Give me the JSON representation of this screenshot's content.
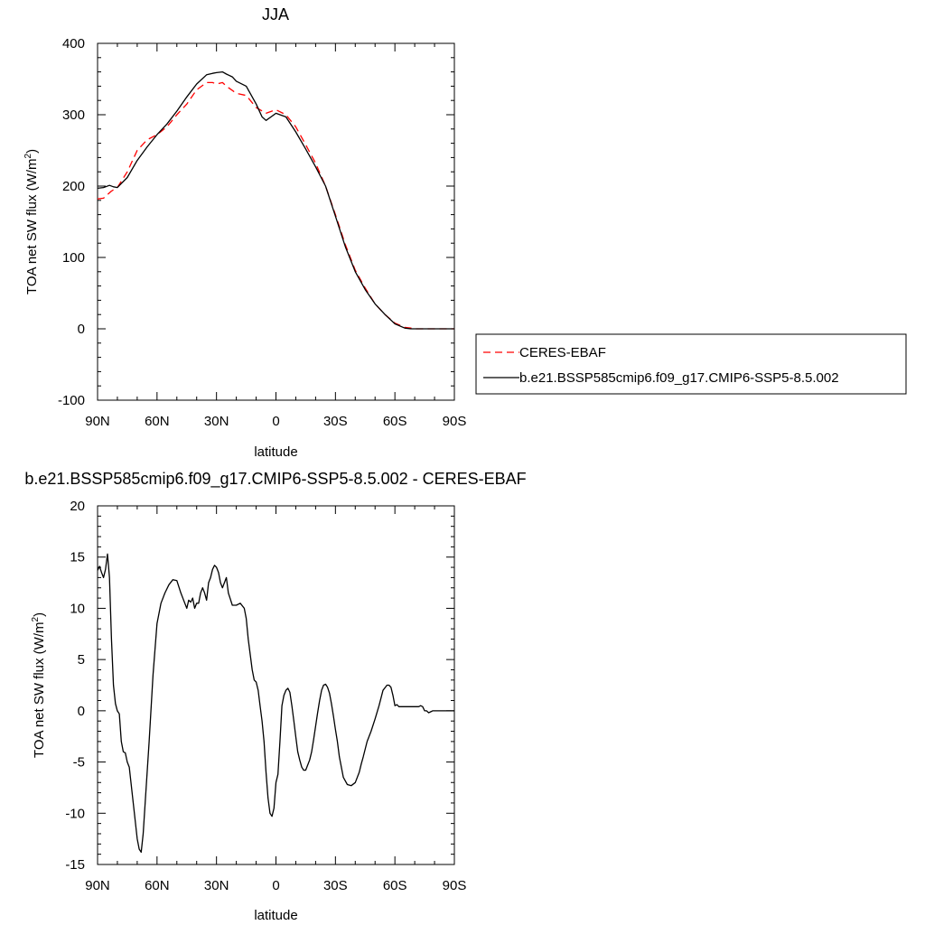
{
  "chart_data": [
    {
      "type": "line",
      "title": "JJA",
      "xlabel": "latitude",
      "ylabel": "TOA net SW flux (W/m",
      "ylabel_sup": "2",
      "ylabel_close": ")",
      "xlim": [
        90,
        -90
      ],
      "ylim": [
        -100,
        400
      ],
      "x_ticks": [
        90,
        60,
        30,
        0,
        -30,
        -60,
        -90
      ],
      "x_tick_labels": [
        "90N",
        "60N",
        "30N",
        "0",
        "30S",
        "60S",
        "90S"
      ],
      "y_ticks": [
        -100,
        0,
        100,
        200,
        300,
        400
      ],
      "y_tick_labels": [
        "-100",
        "0",
        "100",
        "200",
        "300",
        "400"
      ],
      "legend_position": "right",
      "series": [
        {
          "name": "CERES-EBAF",
          "color": "#ff0000",
          "dash": "dashed",
          "x": [
            90,
            87,
            83,
            80,
            75,
            70,
            65,
            60,
            55,
            50,
            45,
            40,
            35,
            32,
            30,
            27,
            25,
            20,
            15,
            10,
            5,
            2,
            0,
            -5,
            -10,
            -15,
            -20,
            -25,
            -30,
            -35,
            -40,
            -45,
            -50,
            -55,
            -60,
            -65,
            -68,
            -70,
            -75,
            -80,
            -85,
            -90
          ],
          "y": [
            182,
            183,
            193,
            198,
            220,
            250,
            265,
            272,
            283,
            300,
            315,
            335,
            345,
            345,
            343,
            345,
            340,
            330,
            327,
            310,
            302,
            305,
            307,
            300,
            283,
            258,
            232,
            200,
            160,
            118,
            82,
            57,
            35,
            20,
            8,
            2,
            1,
            0,
            0,
            0,
            0,
            0
          ]
        },
        {
          "name": "b.e21.BSSP585cmip6.f09_g17.CMIP6-SSP5-8.5.002",
          "color": "#000000",
          "dash": "solid",
          "x": [
            90,
            87,
            84,
            82,
            80,
            75,
            70,
            65,
            60,
            55,
            50,
            45,
            40,
            35,
            32,
            30,
            27,
            25,
            22,
            20,
            15,
            10,
            7,
            5,
            2,
            0,
            -5,
            -10,
            -15,
            -20,
            -25,
            -30,
            -35,
            -40,
            -45,
            -50,
            -55,
            -60,
            -65,
            -68,
            -70,
            -75,
            -80,
            -85,
            -90
          ],
          "y": [
            197,
            198,
            201,
            199,
            198,
            212,
            236,
            255,
            272,
            287,
            305,
            325,
            343,
            356,
            358,
            359,
            360,
            357,
            353,
            347,
            340,
            315,
            297,
            292,
            298,
            302,
            297,
            276,
            252,
            227,
            200,
            158,
            115,
            80,
            55,
            35,
            20,
            7,
            1,
            0,
            0,
            0,
            0,
            0,
            0
          ]
        }
      ]
    },
    {
      "type": "line",
      "title": "b.e21.BSSP585cmip6.f09_g17.CMIP6-SSP5-8.5.002 - CERES-EBAF",
      "xlabel": "latitude",
      "ylabel": "TOA net SW flux (W/m",
      "ylabel_sup": "2",
      "ylabel_close": ")",
      "xlim": [
        90,
        -90
      ],
      "ylim": [
        -15,
        20
      ],
      "x_ticks": [
        90,
        60,
        30,
        0,
        -30,
        -60,
        -90
      ],
      "x_tick_labels": [
        "90N",
        "60N",
        "30N",
        "0",
        "30S",
        "60S",
        "90S"
      ],
      "y_ticks": [
        -15,
        -10,
        -5,
        0,
        5,
        10,
        15,
        20
      ],
      "y_tick_labels": [
        "-15",
        "-10",
        "-5",
        "0",
        "5",
        "10",
        "15",
        "20"
      ],
      "series": [
        {
          "color": "#000000",
          "dash": "solid",
          "x": [
            90,
            89,
            88,
            87,
            86,
            85,
            84,
            83,
            82,
            81,
            80,
            79,
            78,
            77,
            76,
            75,
            74,
            72,
            70,
            69,
            68,
            67,
            66,
            64,
            62,
            60,
            58,
            56,
            54,
            52,
            50,
            48,
            46,
            45,
            44,
            43,
            42,
            41,
            40,
            39,
            38,
            37,
            36,
            35,
            34,
            33,
            32,
            31,
            30,
            29,
            28,
            27,
            26,
            25,
            24,
            22,
            20,
            18,
            16,
            15,
            14,
            13,
            12,
            11,
            10,
            9,
            8,
            7,
            6,
            5,
            4,
            3,
            2,
            1,
            0,
            -1,
            -2,
            -3,
            -4,
            -5,
            -6,
            -7,
            -8,
            -9,
            -10,
            -11,
            -12,
            -13,
            -14,
            -15,
            -16,
            -17,
            -18,
            -19,
            -20,
            -21,
            -22,
            -23,
            -24,
            -25,
            -26,
            -27,
            -28,
            -29,
            -30,
            -31,
            -32,
            -34,
            -36,
            -38,
            -40,
            -42,
            -43,
            -44,
            -46,
            -48,
            -50,
            -52,
            -54,
            -56,
            -57,
            -58,
            -59,
            -60,
            -61,
            -62,
            -63,
            -64,
            -65,
            -66,
            -67,
            -68,
            -69,
            -70,
            -71,
            -72,
            -73,
            -74,
            -75,
            -76,
            -77,
            -78,
            -79,
            -80,
            -82,
            -84,
            -86,
            -88,
            -90
          ],
          "y": [
            13.7,
            14.1,
            13.5,
            13.0,
            13.8,
            15.3,
            13.0,
            7.0,
            2.5,
            0.7,
            0.0,
            -0.3,
            -3.0,
            -4.0,
            -4.1,
            -5.0,
            -5.5,
            -9.0,
            -12.5,
            -13.5,
            -13.8,
            -12.0,
            -9.0,
            -3.0,
            3.5,
            8.5,
            10.5,
            11.5,
            12.3,
            12.8,
            12.7,
            11.5,
            10.5,
            10.0,
            10.8,
            10.6,
            11.0,
            10.0,
            10.5,
            10.5,
            11.5,
            12.0,
            11.5,
            10.8,
            12.5,
            13.0,
            13.8,
            14.2,
            14.0,
            13.5,
            12.5,
            12.0,
            12.5,
            13.0,
            11.5,
            10.3,
            10.3,
            10.5,
            10.0,
            9.0,
            7.0,
            5.5,
            4.0,
            3.0,
            2.8,
            2.0,
            0.5,
            -1.0,
            -3.0,
            -6.0,
            -8.5,
            -10.0,
            -10.3,
            -9.5,
            -7.0,
            -6.2,
            -3.0,
            0.5,
            1.5,
            2.0,
            2.2,
            1.8,
            0.5,
            -1.0,
            -2.5,
            -4.0,
            -4.8,
            -5.5,
            -5.8,
            -5.8,
            -5.3,
            -4.8,
            -4.0,
            -2.8,
            -1.5,
            -0.2,
            1.0,
            2.0,
            2.5,
            2.6,
            2.3,
            1.7,
            0.7,
            -0.5,
            -1.8,
            -3.0,
            -4.5,
            -6.5,
            -7.2,
            -7.3,
            -7.0,
            -6.0,
            -5.2,
            -4.5,
            -3.0,
            -2.0,
            -0.8,
            0.5,
            2.0,
            2.5,
            2.5,
            2.3,
            1.5,
            0.5,
            0.6,
            0.4,
            0.4,
            0.4,
            0.4,
            0.4,
            0.4,
            0.4,
            0.4,
            0.4,
            0.4,
            0.4,
            0.5,
            0.4,
            0.0,
            0.0,
            -0.2,
            -0.1,
            0.0,
            0.0,
            0.0,
            0.0,
            0.0,
            0.0,
            0.0
          ]
        }
      ]
    }
  ]
}
